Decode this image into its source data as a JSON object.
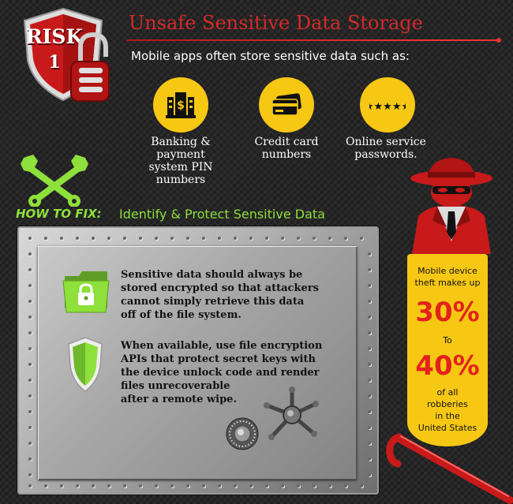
{
  "header": {
    "risk_word": "RISK",
    "risk_number": "1",
    "title": "Unsafe Sensitive Data Storage",
    "intro": "Mobile apps often store sensitive data such as:"
  },
  "examples": [
    {
      "label": "Banking &\npayment\nsystem PIN\nnumbers",
      "icon": "bank-icon"
    },
    {
      "label": "Credit card\nnumbers",
      "icon": "credit-card-icon"
    },
    {
      "label": "Online service\npasswords.",
      "icon": "password-icon"
    }
  ],
  "fix": {
    "label": "HOW TO FIX:",
    "title": "Identify & Protect Sensitive Data",
    "points": [
      {
        "text": "Sensitive data should always be\nstored encrypted so that attackers\ncannot simply retrieve this data\noff of the file system.",
        "icon": "folder-lock-icon"
      },
      {
        "text": "When available, use file encryption\nAPIs that protect secret keys with\nthe device unlock code and render\nfiles unrecoverable\nafter a remote wipe.",
        "icon": "shield-check-icon"
      }
    ]
  },
  "stat": {
    "line1": "Mobile device\ntheft makes up",
    "value1": "30%",
    "to": "To",
    "value2": "40%",
    "line2": "of all\nrobberies\nin the\nUnited States"
  },
  "colors": {
    "accent_red": "#d42a2a",
    "accent_green": "#8ee03a",
    "accent_yellow": "#f6c814",
    "stat_red": "#e2231a"
  }
}
